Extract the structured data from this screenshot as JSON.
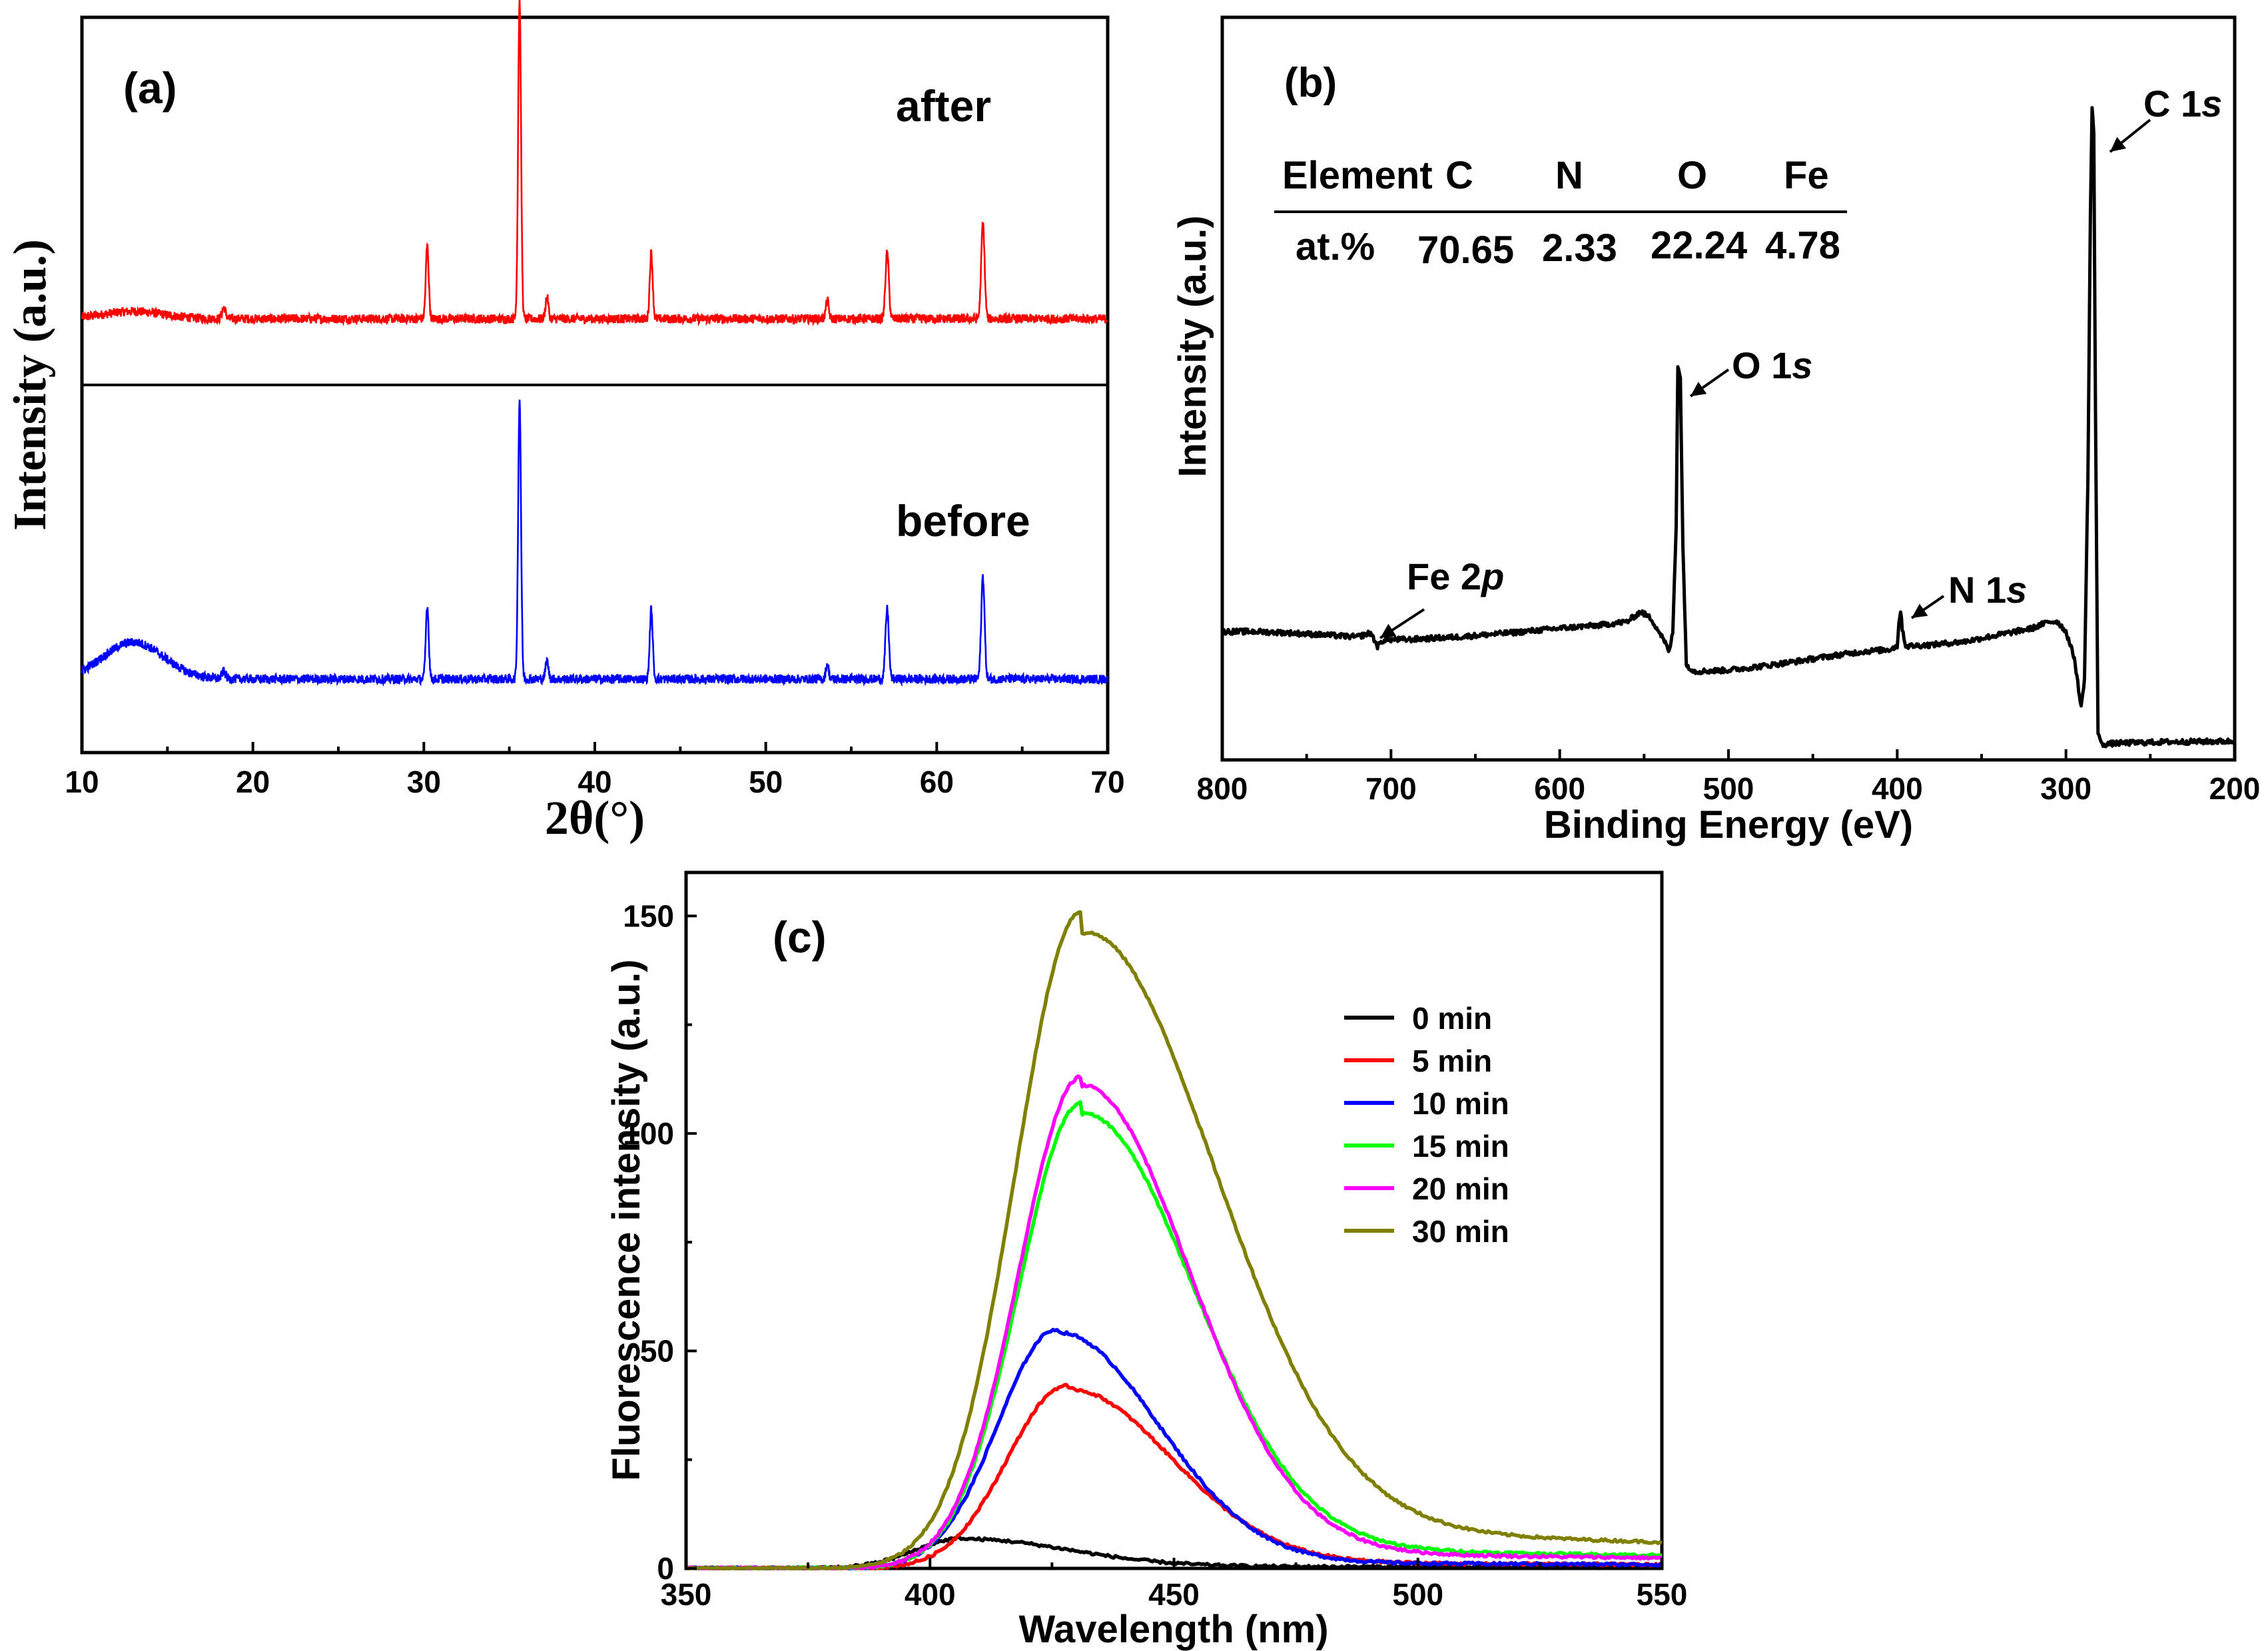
{
  "chart_data": [
    {
      "panel": "(a)",
      "type": "line",
      "xlabel": "2θ(°)",
      "ylabel": "Intensity (a.u.)",
      "xlim": [
        10,
        70
      ],
      "xticks": [
        "10",
        "20",
        "30",
        "40",
        "50",
        "60",
        "70"
      ],
      "series": [
        {
          "name": "after",
          "label": "after",
          "color": "#ff0000",
          "baseline": 0.18,
          "hump": {
            "center": 13,
            "height": 0.02,
            "width": 2.5
          },
          "peaks": [
            {
              "x": 18.3,
              "h": 0.03,
              "w": 0.15
            },
            {
              "x": 30.2,
              "h": 0.2,
              "w": 0.12
            },
            {
              "x": 35.6,
              "h": 0.87,
              "w": 0.12
            },
            {
              "x": 37.2,
              "h": 0.06,
              "w": 0.12
            },
            {
              "x": 43.3,
              "h": 0.18,
              "w": 0.12
            },
            {
              "x": 53.6,
              "h": 0.05,
              "w": 0.12
            },
            {
              "x": 57.1,
              "h": 0.18,
              "w": 0.14
            },
            {
              "x": 62.7,
              "h": 0.26,
              "w": 0.14
            }
          ]
        },
        {
          "name": "before",
          "label": "before",
          "color": "#0000ff",
          "baseline": 0.2,
          "hump": {
            "center": 13,
            "height": 0.1,
            "width": 2.5
          },
          "peaks": [
            {
              "x": 18.3,
              "h": 0.02,
              "w": 0.15
            },
            {
              "x": 30.2,
              "h": 0.2,
              "w": 0.12
            },
            {
              "x": 35.6,
              "h": 0.76,
              "w": 0.12
            },
            {
              "x": 37.2,
              "h": 0.05,
              "w": 0.12
            },
            {
              "x": 43.3,
              "h": 0.19,
              "w": 0.12
            },
            {
              "x": 53.6,
              "h": 0.04,
              "w": 0.12
            },
            {
              "x": 57.1,
              "h": 0.19,
              "w": 0.14
            },
            {
              "x": 62.7,
              "h": 0.28,
              "w": 0.14
            }
          ]
        }
      ]
    },
    {
      "panel": "(b)",
      "type": "line",
      "xlabel": "Binding Energy (eV)",
      "ylabel": "Intensity (a.u.)",
      "xlim": [
        800,
        200
      ],
      "xticks": [
        "800",
        "700",
        "600",
        "500",
        "400",
        "300",
        "200"
      ],
      "series": [
        {
          "name": "XPS survey",
          "color": "#000000",
          "points": [
            [
              800,
              0.17
            ],
            [
              780,
              0.17
            ],
            [
              760,
              0.168
            ],
            [
              740,
              0.165
            ],
            [
              720,
              0.162
            ],
            [
              712,
              0.168
            ],
            [
              708,
              0.148
            ],
            [
              704,
              0.158
            ],
            [
              690,
              0.158
            ],
            [
              660,
              0.162
            ],
            [
              630,
              0.168
            ],
            [
              600,
              0.175
            ],
            [
              575,
              0.18
            ],
            [
              560,
              0.185
            ],
            [
              552,
              0.2
            ],
            [
              546,
              0.19
            ],
            [
              540,
              0.165
            ],
            [
              535,
              0.14
            ],
            [
              533,
              0.17
            ],
            [
              531,
              0.33
            ],
            [
              530,
              0.57
            ],
            [
              528.5,
              0.55
            ],
            [
              527,
              0.3
            ],
            [
              525,
              0.12
            ],
            [
              520,
              0.11
            ],
            [
              500,
              0.112
            ],
            [
              480,
              0.118
            ],
            [
              460,
              0.125
            ],
            [
              440,
              0.133
            ],
            [
              420,
              0.14
            ],
            [
              405,
              0.143
            ],
            [
              400,
              0.148
            ],
            [
              399,
              0.185
            ],
            [
              398,
              0.2
            ],
            [
              397,
              0.175
            ],
            [
              395,
              0.148
            ],
            [
              380,
              0.15
            ],
            [
              360,
              0.155
            ],
            [
              340,
              0.165
            ],
            [
              320,
              0.175
            ],
            [
              310,
              0.185
            ],
            [
              305,
              0.185
            ],
            [
              300,
              0.17
            ],
            [
              295,
              0.13
            ],
            [
              291,
              0.055
            ],
            [
              289,
              0.1
            ],
            [
              287,
              0.4
            ],
            [
              285.5,
              0.8
            ],
            [
              284.5,
              0.96
            ],
            [
              283.5,
              0.92
            ],
            [
              282.5,
              0.5
            ],
            [
              281,
              0.02
            ],
            [
              279,
              0.0
            ],
            [
              270,
              0.002
            ],
            [
              240,
              0.004
            ],
            [
              200,
              0.005
            ]
          ]
        }
      ],
      "annotations": [
        {
          "name": "fe",
          "label": "Fe 2",
          "italic": "p",
          "x": 710
        },
        {
          "name": "o",
          "label": "O 1",
          "italic": "s",
          "x": 529
        },
        {
          "name": "n",
          "label": "N 1",
          "italic": "s",
          "x": 398
        },
        {
          "name": "c",
          "label": "C 1",
          "italic": "s",
          "x": 284.5
        }
      ],
      "inset_table": {
        "headers": [
          "Element",
          "C",
          "N",
          "O",
          "Fe"
        ],
        "rows": [
          [
            "at.%",
            "70.65",
            "2.33",
            "22.24",
            "4.78"
          ]
        ]
      }
    },
    {
      "panel": "(c)",
      "type": "line",
      "xlabel": "Wavelength (nm)",
      "ylabel": "Fluorescence intensity (a.u.)",
      "xlim": [
        350,
        550
      ],
      "ylim": [
        0,
        160
      ],
      "xticks": [
        "350",
        "400",
        "450",
        "500",
        "550"
      ],
      "yticks": [
        "0",
        "50",
        "100",
        "150"
      ],
      "legend": "top-right",
      "series": [
        {
          "name": "0 min",
          "color": "#000000",
          "peak_x": 407,
          "peak_y": 7,
          "sigma_left": 14,
          "sigma_right": 30,
          "tail": 0.5
        },
        {
          "name": "5 min",
          "color": "#ff0000",
          "peak_x": 428,
          "peak_y": 42,
          "sigma_left": 17,
          "sigma_right": 30,
          "tail": 1.5
        },
        {
          "name": "10 min",
          "color": "#0000ff",
          "peak_x": 426,
          "peak_y": 55,
          "sigma_left": 17,
          "sigma_right": 29,
          "tail": 1.5
        },
        {
          "name": "15 min",
          "color": "#00ff00",
          "peak_x": 431,
          "peak_y": 107,
          "sigma_left": 18,
          "sigma_right": 32,
          "tail": 5
        },
        {
          "name": "20 min",
          "color": "#ff00ff",
          "peak_x": 431,
          "peak_y": 113,
          "sigma_left": 18,
          "sigma_right": 31,
          "tail": 4
        },
        {
          "name": "30 min",
          "color": "#808000",
          "peak_x": 431,
          "peak_y": 151,
          "sigma_left": 19,
          "sigma_right": 38,
          "tail": 10
        }
      ]
    }
  ]
}
